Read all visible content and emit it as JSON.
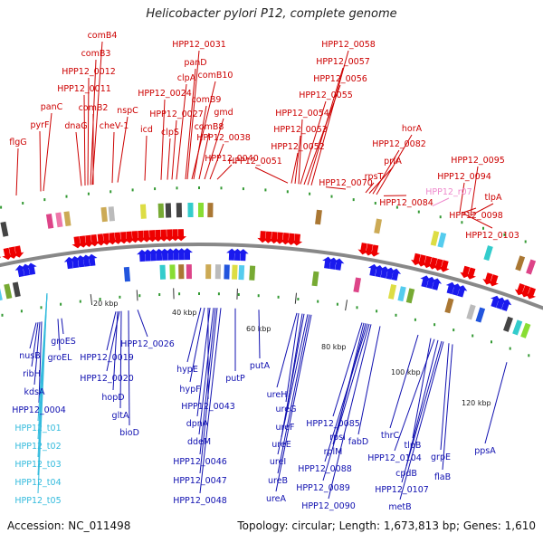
{
  "title": "Helicobacter pylori P12, complete genome",
  "accession_label": "Accession: NC_011498",
  "summary_label": "Topology: circular; Length: 1,673,813 bp; Genes: 1,610",
  "colors": {
    "forward_label": "#cc0000",
    "reverse_label": "#1010b0",
    "trna_label": "#33bbdd",
    "rrna_label": "#ee88cc",
    "forward_arrow": "#ee0000",
    "reverse_arrow": "#1a1aee",
    "backbone": "#888888",
    "tick_dot": "#339933"
  },
  "scale": {
    "ticks": [
      {
        "label": "20 kbp"
      },
      {
        "label": "40 kbp"
      },
      {
        "label": "60 kbp"
      },
      {
        "label": "80 kbp"
      },
      {
        "label": "100 kbp"
      },
      {
        "label": "120 kbp"
      }
    ]
  },
  "forward_genes": [
    {
      "label": "flgG"
    },
    {
      "label": "pyrF"
    },
    {
      "label": "panC"
    },
    {
      "label": "dnaG"
    },
    {
      "label": "HPP12_0011"
    },
    {
      "label": "HPP12_0012"
    },
    {
      "label": "comB3"
    },
    {
      "label": "comB4"
    },
    {
      "label": "comB2"
    },
    {
      "label": "cheV-1"
    },
    {
      "label": "nspC"
    },
    {
      "label": "icd"
    },
    {
      "label": "HPP12_0024"
    },
    {
      "label": "clpS"
    },
    {
      "label": "HPP12_0027"
    },
    {
      "label": "clpA"
    },
    {
      "label": "panD"
    },
    {
      "label": "HPP12_0031"
    },
    {
      "label": "comB10"
    },
    {
      "label": "comB9"
    },
    {
      "label": "comB8"
    },
    {
      "label": "gmd"
    },
    {
      "label": "HPP12_0038"
    },
    {
      "label": "HPP12_0040"
    },
    {
      "label": "HPP12_0051"
    },
    {
      "label": "HPP12_0052"
    },
    {
      "label": "HPP12_0053"
    },
    {
      "label": "HPP12_0054"
    },
    {
      "label": "HPP12_0055"
    },
    {
      "label": "HPP12_0056"
    },
    {
      "label": "HPP12_0057"
    },
    {
      "label": "HPP12_0058"
    },
    {
      "label": "HPP12_0070"
    },
    {
      "label": "rpsT"
    },
    {
      "label": "prfA"
    },
    {
      "label": "HPP12_0082"
    },
    {
      "label": "horA"
    },
    {
      "label": "HPP12_0084"
    },
    {
      "label": "HPP12_0095"
    },
    {
      "label": "HPP12_0094"
    },
    {
      "label": "tlpA"
    },
    {
      "label": "HPP12_0098"
    },
    {
      "label": "HPP12_0103"
    }
  ],
  "rrna_genes": [
    {
      "label": "HPP12_r07"
    }
  ],
  "reverse_genes": [
    {
      "label": "nusB"
    },
    {
      "label": "ribH"
    },
    {
      "label": "kdsA"
    },
    {
      "label": "HPP12_0004"
    },
    {
      "label": "groES"
    },
    {
      "label": "groEL"
    },
    {
      "label": "HPP12_0019"
    },
    {
      "label": "HPP12_0020"
    },
    {
      "label": "HPP12_0026"
    },
    {
      "label": "hopD"
    },
    {
      "label": "gltA"
    },
    {
      "label": "bioD"
    },
    {
      "label": "hypE"
    },
    {
      "label": "hypF"
    },
    {
      "label": "HPP12_0043"
    },
    {
      "label": "dpnA"
    },
    {
      "label": "ddeM"
    },
    {
      "label": "HPP12_0046"
    },
    {
      "label": "HPP12_0047"
    },
    {
      "label": "HPP12_0048"
    },
    {
      "label": "putP"
    },
    {
      "label": "putA"
    },
    {
      "label": "ureH"
    },
    {
      "label": "ureG"
    },
    {
      "label": "ureF"
    },
    {
      "label": "ureE"
    },
    {
      "label": "ureI"
    },
    {
      "label": "ureB"
    },
    {
      "label": "ureA"
    },
    {
      "label": "HPP12_0085"
    },
    {
      "label": "rpsI"
    },
    {
      "label": "rplM"
    },
    {
      "label": "HPP12_0088"
    },
    {
      "label": "HPP12_0089"
    },
    {
      "label": "HPP12_0090"
    },
    {
      "label": "fabD"
    },
    {
      "label": "thrC"
    },
    {
      "label": "tlpB"
    },
    {
      "label": "HPP12_0104"
    },
    {
      "label": "cpdB"
    },
    {
      "label": "HPP12_0107"
    },
    {
      "label": "metB"
    },
    {
      "label": "grpE"
    },
    {
      "label": "flaB"
    },
    {
      "label": "ppsA"
    }
  ],
  "trna_genes": [
    {
      "label": "HPP12_t01"
    },
    {
      "label": "HPP12_t02"
    },
    {
      "label": "HPP12_t03"
    },
    {
      "label": "HPP12_t04"
    },
    {
      "label": "HPP12_t05"
    }
  ]
}
